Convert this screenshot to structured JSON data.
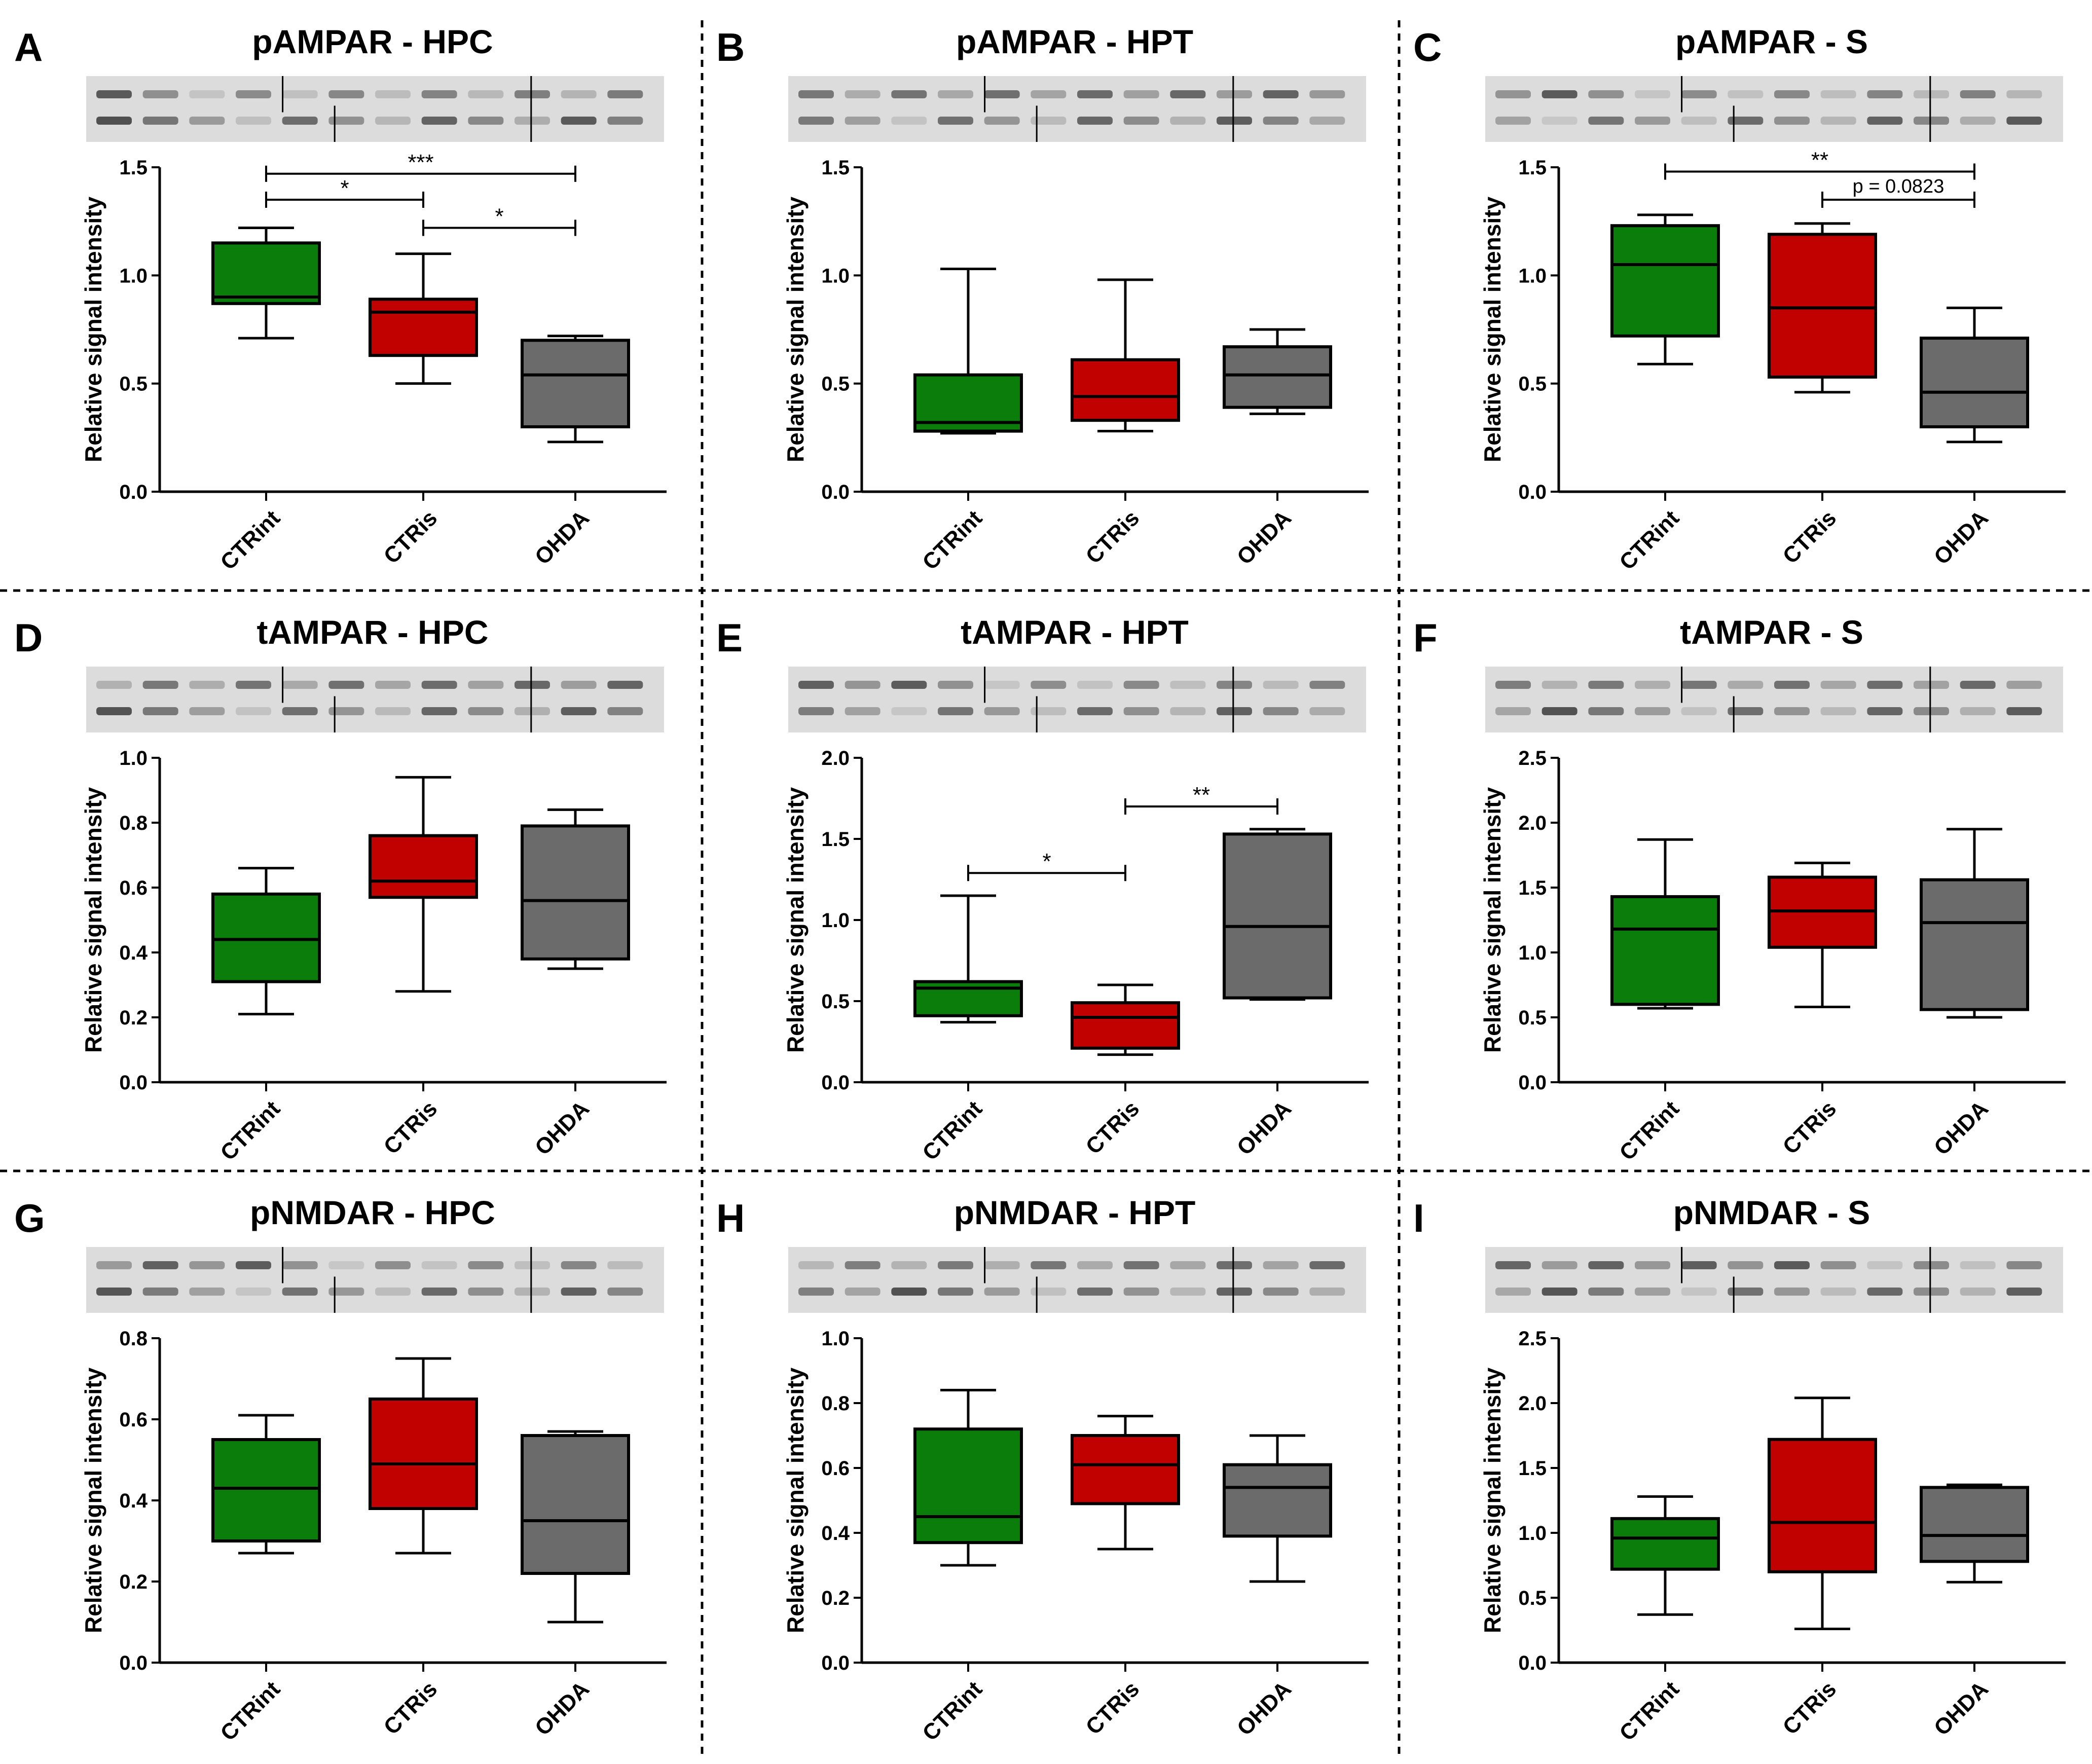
{
  "figure": {
    "categories": [
      "CTRint",
      "CTRis",
      "OHDA"
    ],
    "colors": {
      "CTRint": "#0a7d0a",
      "CTRis": "#c10000",
      "OHDA": "#6b6b6b"
    },
    "ylabel": "Relative signal intensity"
  },
  "chart_data": [
    {
      "letter": "A",
      "title": "pAMPAR - HPC",
      "type": "box",
      "ylabel": "Relative signal intensity",
      "ylim": [
        0,
        1.5
      ],
      "yticks": [
        0.0,
        0.5,
        1.0,
        1.5
      ],
      "tick_labels": [
        "0.0",
        "0.5",
        "1.0",
        "1.5"
      ],
      "categories": [
        "CTRint",
        "CTRis",
        "OHDA"
      ],
      "boxes": [
        {
          "min": 0.71,
          "q1": 0.87,
          "median": 0.9,
          "q3": 1.15,
          "max": 1.22
        },
        {
          "min": 0.5,
          "q1": 0.63,
          "median": 0.83,
          "q3": 0.89,
          "max": 1.1
        },
        {
          "min": 0.23,
          "q1": 0.3,
          "median": 0.54,
          "q3": 0.7,
          "max": 0.72
        }
      ],
      "significance": [
        {
          "from": 0,
          "to": 2,
          "y": 1.47,
          "label": "***"
        },
        {
          "from": 0,
          "to": 1,
          "y": 1.35,
          "label": "*"
        },
        {
          "from": 1,
          "to": 2,
          "y": 1.22,
          "label": "*"
        }
      ]
    },
    {
      "letter": "B",
      "title": "pAMPAR - HPT",
      "type": "box",
      "ylabel": "Relative signal intensity",
      "ylim": [
        0,
        1.5
      ],
      "yticks": [
        0.0,
        0.5,
        1.0,
        1.5
      ],
      "tick_labels": [
        "0.0",
        "0.5",
        "1.0",
        "1.5"
      ],
      "categories": [
        "CTRint",
        "CTRis",
        "OHDA"
      ],
      "boxes": [
        {
          "min": 0.27,
          "q1": 0.28,
          "median": 0.32,
          "q3": 0.54,
          "max": 1.03
        },
        {
          "min": 0.28,
          "q1": 0.33,
          "median": 0.44,
          "q3": 0.61,
          "max": 0.98
        },
        {
          "min": 0.36,
          "q1": 0.39,
          "median": 0.54,
          "q3": 0.67,
          "max": 0.75
        }
      ],
      "significance": []
    },
    {
      "letter": "C",
      "title": "pAMPAR - S",
      "type": "box",
      "ylabel": "Relative signal intensity",
      "ylim": [
        0,
        1.5
      ],
      "yticks": [
        0.0,
        0.5,
        1.0,
        1.5
      ],
      "tick_labels": [
        "0.0",
        "0.5",
        "1.0",
        "1.5"
      ],
      "categories": [
        "CTRint",
        "CTRis",
        "OHDA"
      ],
      "boxes": [
        {
          "min": 0.59,
          "q1": 0.72,
          "median": 1.05,
          "q3": 1.23,
          "max": 1.28
        },
        {
          "min": 0.46,
          "q1": 0.53,
          "median": 0.85,
          "q3": 1.19,
          "max": 1.24
        },
        {
          "min": 0.23,
          "q1": 0.3,
          "median": 0.46,
          "q3": 0.71,
          "max": 0.85
        }
      ],
      "significance": [
        {
          "from": 0,
          "to": 2,
          "y": 1.48,
          "label": "**"
        },
        {
          "from": 1,
          "to": 2,
          "y": 1.35,
          "label": "p = 0.0823"
        }
      ]
    },
    {
      "letter": "D",
      "title": "tAMPAR - HPC",
      "type": "box",
      "ylabel": "Relative signal intensity",
      "ylim": [
        0,
        1.0
      ],
      "yticks": [
        0.0,
        0.2,
        0.4,
        0.6,
        0.8,
        1.0
      ],
      "tick_labels": [
        "0.0",
        "0.2",
        "0.4",
        "0.6",
        "0.8",
        "1.0"
      ],
      "categories": [
        "CTRint",
        "CTRis",
        "OHDA"
      ],
      "boxes": [
        {
          "min": 0.21,
          "q1": 0.31,
          "median": 0.44,
          "q3": 0.58,
          "max": 0.66
        },
        {
          "min": 0.28,
          "q1": 0.57,
          "median": 0.62,
          "q3": 0.76,
          "max": 0.94
        },
        {
          "min": 0.35,
          "q1": 0.38,
          "median": 0.56,
          "q3": 0.79,
          "max": 0.84
        }
      ],
      "significance": []
    },
    {
      "letter": "E",
      "title": "tAMPAR - HPT",
      "type": "box",
      "ylabel": "Relative signal intensity",
      "ylim": [
        0,
        2.0
      ],
      "yticks": [
        0.0,
        0.5,
        1.0,
        1.5,
        2.0
      ],
      "tick_labels": [
        "0.0",
        "0.5",
        "1.0",
        "1.5",
        "2.0"
      ],
      "categories": [
        "CTRint",
        "CTRis",
        "OHDA"
      ],
      "boxes": [
        {
          "min": 0.37,
          "q1": 0.41,
          "median": 0.58,
          "q3": 0.62,
          "max": 1.15
        },
        {
          "min": 0.17,
          "q1": 0.21,
          "median": 0.4,
          "q3": 0.49,
          "max": 0.6
        },
        {
          "min": 0.51,
          "q1": 0.52,
          "median": 0.96,
          "q3": 1.53,
          "max": 1.56
        }
      ],
      "significance": [
        {
          "from": 0,
          "to": 1,
          "y": 1.29,
          "label": "*"
        },
        {
          "from": 1,
          "to": 2,
          "y": 1.7,
          "label": "**"
        }
      ]
    },
    {
      "letter": "F",
      "title": "tAMPAR - S",
      "type": "box",
      "ylabel": "Relative signal intensity",
      "ylim": [
        0,
        2.5
      ],
      "yticks": [
        0.0,
        0.5,
        1.0,
        1.5,
        2.0,
        2.5
      ],
      "tick_labels": [
        "0.0",
        "0.5",
        "1.0",
        "1.5",
        "2.0",
        "2.5"
      ],
      "categories": [
        "CTRint",
        "CTRis",
        "OHDA"
      ],
      "boxes": [
        {
          "min": 0.57,
          "q1": 0.6,
          "median": 1.18,
          "q3": 1.43,
          "max": 1.87
        },
        {
          "min": 0.58,
          "q1": 1.04,
          "median": 1.32,
          "q3": 1.58,
          "max": 1.69
        },
        {
          "min": 0.5,
          "q1": 0.56,
          "median": 1.23,
          "q3": 1.56,
          "max": 1.95
        }
      ],
      "significance": []
    },
    {
      "letter": "G",
      "title": "pNMDAR - HPC",
      "type": "box",
      "ylabel": "Relative signal intensity",
      "ylim": [
        0,
        0.8
      ],
      "yticks": [
        0.0,
        0.2,
        0.4,
        0.6,
        0.8
      ],
      "tick_labels": [
        "0.0",
        "0.2",
        "0.4",
        "0.6",
        "0.8"
      ],
      "categories": [
        "CTRint",
        "CTRis",
        "OHDA"
      ],
      "boxes": [
        {
          "min": 0.27,
          "q1": 0.3,
          "median": 0.43,
          "q3": 0.55,
          "max": 0.61
        },
        {
          "min": 0.27,
          "q1": 0.38,
          "median": 0.49,
          "q3": 0.65,
          "max": 0.75
        },
        {
          "min": 0.1,
          "q1": 0.22,
          "median": 0.35,
          "q3": 0.56,
          "max": 0.57
        }
      ],
      "significance": []
    },
    {
      "letter": "H",
      "title": "pNMDAR - HPT",
      "type": "box",
      "ylabel": "Relative signal intensity",
      "ylim": [
        0,
        1.0
      ],
      "yticks": [
        0.0,
        0.2,
        0.4,
        0.6,
        0.8,
        1.0
      ],
      "tick_labels": [
        "0.0",
        "0.2",
        "0.4",
        "0.6",
        "0.8",
        "1.0"
      ],
      "categories": [
        "CTRint",
        "CTRis",
        "OHDA"
      ],
      "boxes": [
        {
          "min": 0.3,
          "q1": 0.37,
          "median": 0.45,
          "q3": 0.72,
          "max": 0.84
        },
        {
          "min": 0.35,
          "q1": 0.49,
          "median": 0.61,
          "q3": 0.7,
          "max": 0.76
        },
        {
          "min": 0.25,
          "q1": 0.39,
          "median": 0.54,
          "q3": 0.61,
          "max": 0.7
        }
      ],
      "significance": []
    },
    {
      "letter": "I",
      "title": "pNMDAR - S",
      "type": "box",
      "ylabel": "Relative signal intensity",
      "ylim": [
        0,
        2.5
      ],
      "yticks": [
        0.0,
        0.5,
        1.0,
        1.5,
        2.0,
        2.5
      ],
      "tick_labels": [
        "0.0",
        "0.5",
        "1.0",
        "1.5",
        "2.0",
        "2.5"
      ],
      "categories": [
        "CTRint",
        "CTRis",
        "OHDA"
      ],
      "boxes": [
        {
          "min": 0.37,
          "q1": 0.72,
          "median": 0.96,
          "q3": 1.11,
          "max": 1.28
        },
        {
          "min": 0.26,
          "q1": 0.7,
          "median": 1.08,
          "q3": 1.72,
          "max": 2.04
        },
        {
          "min": 0.62,
          "q1": 0.78,
          "median": 0.98,
          "q3": 1.35,
          "max": 1.37
        }
      ],
      "significance": []
    }
  ]
}
